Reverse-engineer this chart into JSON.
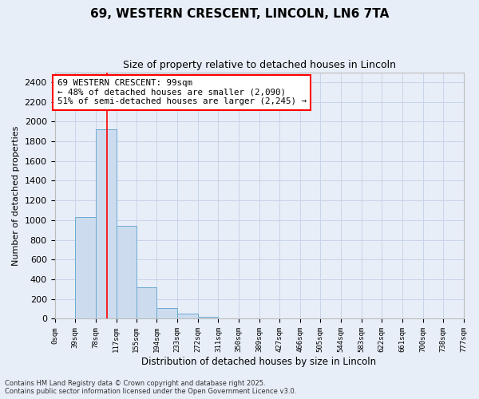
{
  "title_line1": "69, WESTERN CRESCENT, LINCOLN, LN6 7TA",
  "title_line2": "Size of property relative to detached houses in Lincoln",
  "xlabel": "Distribution of detached houses by size in Lincoln",
  "ylabel": "Number of detached properties",
  "bar_edges": [
    0,
    39,
    78,
    117,
    155,
    194,
    233,
    272,
    311,
    350,
    389,
    427,
    466,
    505,
    544,
    583,
    622,
    661,
    700,
    738,
    777
  ],
  "bar_heights": [
    0,
    1030,
    1920,
    940,
    320,
    105,
    50,
    20,
    5,
    2,
    1,
    0,
    0,
    0,
    0,
    0,
    0,
    0,
    0,
    0
  ],
  "bar_color": "#ccdcee",
  "bar_edgecolor": "#6aaad4",
  "vline_x": 99,
  "vline_color": "red",
  "annotation_title": "69 WESTERN CRESCENT: 99sqm",
  "annotation_line2": "← 48% of detached houses are smaller (2,090)",
  "annotation_line3": "51% of semi-detached houses are larger (2,245) →",
  "annotation_box_color": "white",
  "annotation_box_edgecolor": "red",
  "ylim": [
    0,
    2500
  ],
  "yticks": [
    0,
    200,
    400,
    600,
    800,
    1000,
    1200,
    1400,
    1600,
    1800,
    2000,
    2200,
    2400
  ],
  "tick_labels": [
    "0sqm",
    "39sqm",
    "78sqm",
    "117sqm",
    "155sqm",
    "194sqm",
    "233sqm",
    "272sqm",
    "311sqm",
    "350sqm",
    "389sqm",
    "427sqm",
    "466sqm",
    "505sqm",
    "544sqm",
    "583sqm",
    "622sqm",
    "661sqm",
    "700sqm",
    "738sqm",
    "777sqm"
  ],
  "grid_color": "#c8d4e8",
  "bg_color": "#e8eef8",
  "footnote1": "Contains HM Land Registry data © Crown copyright and database right 2025.",
  "footnote2": "Contains public sector information licensed under the Open Government Licence v3.0."
}
